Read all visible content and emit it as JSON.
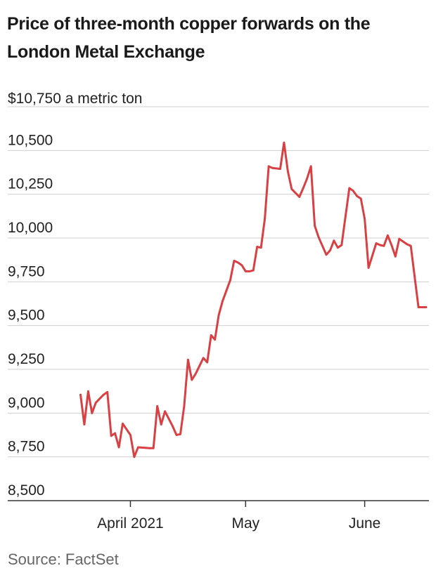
{
  "title_line1": "Price of three-month copper forwards on the",
  "title_line2": "London Metal Exchange",
  "source": "Source: FactSet",
  "colors": {
    "line": "#d94043",
    "grid": "#cfcfcf",
    "axis": "#333333"
  },
  "chart_data": {
    "type": "line",
    "title": "Price of three-month copper forwards on the London Metal Exchange",
    "ylabel": "$ a metric ton",
    "y_top_label": "$10,750 a metric ton",
    "ylim": [
      8500,
      10750
    ],
    "yticks": [
      8500,
      8750,
      9000,
      9250,
      9500,
      9750,
      10000,
      10250,
      10500,
      10750
    ],
    "ytick_labels": [
      "8,500",
      "8,750",
      "9,000",
      "9,250",
      "9,500",
      "9,750",
      "10,000",
      "10,250",
      "10,500"
    ],
    "xlim": [
      "2021-03-18",
      "2021-06-17"
    ],
    "xticks": [
      {
        "date": "2021-04-01",
        "label": "April 2021"
      },
      {
        "date": "2021-05-01",
        "label": "May"
      },
      {
        "date": "2021-06-01",
        "label": "June"
      }
    ],
    "series": [
      {
        "name": "LME three-month copper",
        "x": [
          "2021-03-19",
          "2021-03-20",
          "2021-03-21",
          "2021-03-22",
          "2021-03-23",
          "2021-03-25",
          "2021-03-26",
          "2021-03-27",
          "2021-03-28",
          "2021-03-29",
          "2021-03-30",
          "2021-04-01",
          "2021-04-02",
          "2021-04-03",
          "2021-04-06",
          "2021-04-07",
          "2021-04-08",
          "2021-04-09",
          "2021-04-10",
          "2021-04-12",
          "2021-04-13",
          "2021-04-14",
          "2021-04-15",
          "2021-04-16",
          "2021-04-17",
          "2021-04-18",
          "2021-04-20",
          "2021-04-21",
          "2021-04-22",
          "2021-04-23",
          "2021-04-24",
          "2021-04-25",
          "2021-04-26",
          "2021-04-27",
          "2021-04-28",
          "2021-04-29",
          "2021-04-30",
          "2021-05-01",
          "2021-05-02",
          "2021-05-03",
          "2021-05-04",
          "2021-05-05",
          "2021-05-06",
          "2021-05-07",
          "2021-05-08",
          "2021-05-10",
          "2021-05-11",
          "2021-05-12",
          "2021-05-13",
          "2021-05-15",
          "2021-05-16",
          "2021-05-17",
          "2021-05-18",
          "2021-05-19",
          "2021-05-20",
          "2021-05-22",
          "2021-05-23",
          "2021-05-24",
          "2021-05-25",
          "2021-05-26",
          "2021-05-28",
          "2021-05-29",
          "2021-05-30",
          "2021-05-31",
          "2021-06-01",
          "2021-06-02",
          "2021-06-04",
          "2021-06-05",
          "2021-06-06",
          "2021-06-07",
          "2021-06-08",
          "2021-06-09",
          "2021-06-10",
          "2021-06-11",
          "2021-06-12",
          "2021-06-13",
          "2021-06-15",
          "2021-06-16",
          "2021-06-17"
        ],
        "values": [
          9105,
          8935,
          9125,
          9000,
          9060,
          9105,
          9120,
          8870,
          8885,
          8805,
          8940,
          8875,
          8750,
          8805,
          8800,
          8800,
          9040,
          8935,
          9010,
          8925,
          8875,
          8880,
          9040,
          9305,
          9190,
          9225,
          9315,
          9290,
          9445,
          9420,
          9560,
          9640,
          9700,
          9760,
          9870,
          9860,
          9845,
          9810,
          9810,
          9815,
          9950,
          9945,
          10110,
          10410,
          10400,
          10395,
          10545,
          10380,
          10280,
          10235,
          10285,
          10340,
          10410,
          10070,
          10005,
          9905,
          9930,
          9985,
          9945,
          9960,
          10285,
          10270,
          10240,
          10225,
          10110,
          9830,
          9970,
          9960,
          9955,
          10015,
          9960,
          9895,
          9995,
          9980,
          9965,
          9955,
          9605,
          9605,
          9605
        ]
      }
    ]
  }
}
